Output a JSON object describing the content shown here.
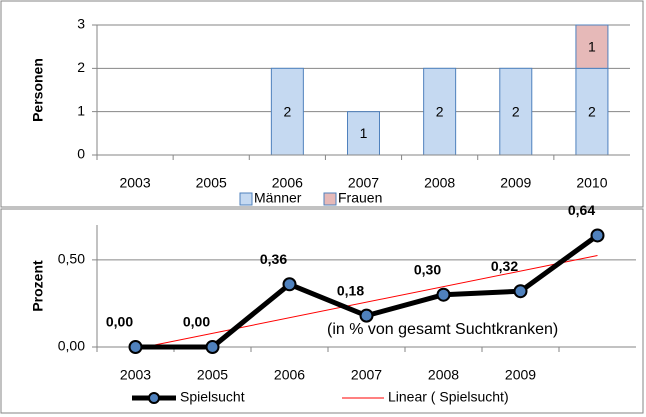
{
  "chart_data": [
    {
      "type": "bar",
      "stacked": true,
      "y_label": "Personen",
      "categories": [
        "2003",
        "2005",
        "2006",
        "2007",
        "2008",
        "2009",
        "2010"
      ],
      "series": [
        {
          "name": "Männer",
          "color": "#c5d9f1",
          "values": [
            0,
            0,
            2,
            1,
            2,
            2,
            2
          ]
        },
        {
          "name": "Frauen",
          "color": "#e6b9b8",
          "values": [
            0,
            0,
            0,
            0,
            0,
            0,
            1
          ]
        }
      ],
      "ylim": [
        0,
        3
      ],
      "yticks": [
        0,
        1,
        2,
        3
      ],
      "grid": true,
      "legend": "bottom"
    },
    {
      "type": "line",
      "y_label": "Prozent",
      "annotation": "(in % von gesamt Suchtkranken)",
      "categories": [
        "2003",
        "2005",
        "2006",
        "2007",
        "2008",
        "2009",
        null
      ],
      "series": [
        {
          "name": "Spielsucht",
          "color": "#000000",
          "values": [
            0,
            0,
            0.36,
            0.18,
            0.3,
            0.32,
            0.64
          ],
          "value_labels": [
            "0,00",
            "0,00",
            "0,36",
            "0,18",
            "0,30",
            "0,32",
            "0,64"
          ]
        }
      ],
      "trendline": {
        "name": "Linear ( Spielsucht)",
        "color": "#ff0000"
      },
      "ylim": [
        0,
        0.7
      ],
      "yticks": [
        {
          "value": 0,
          "label": "0,00"
        },
        {
          "value": 0.5,
          "label": "0,50"
        }
      ],
      "grid": true,
      "legend": "bottom"
    }
  ]
}
